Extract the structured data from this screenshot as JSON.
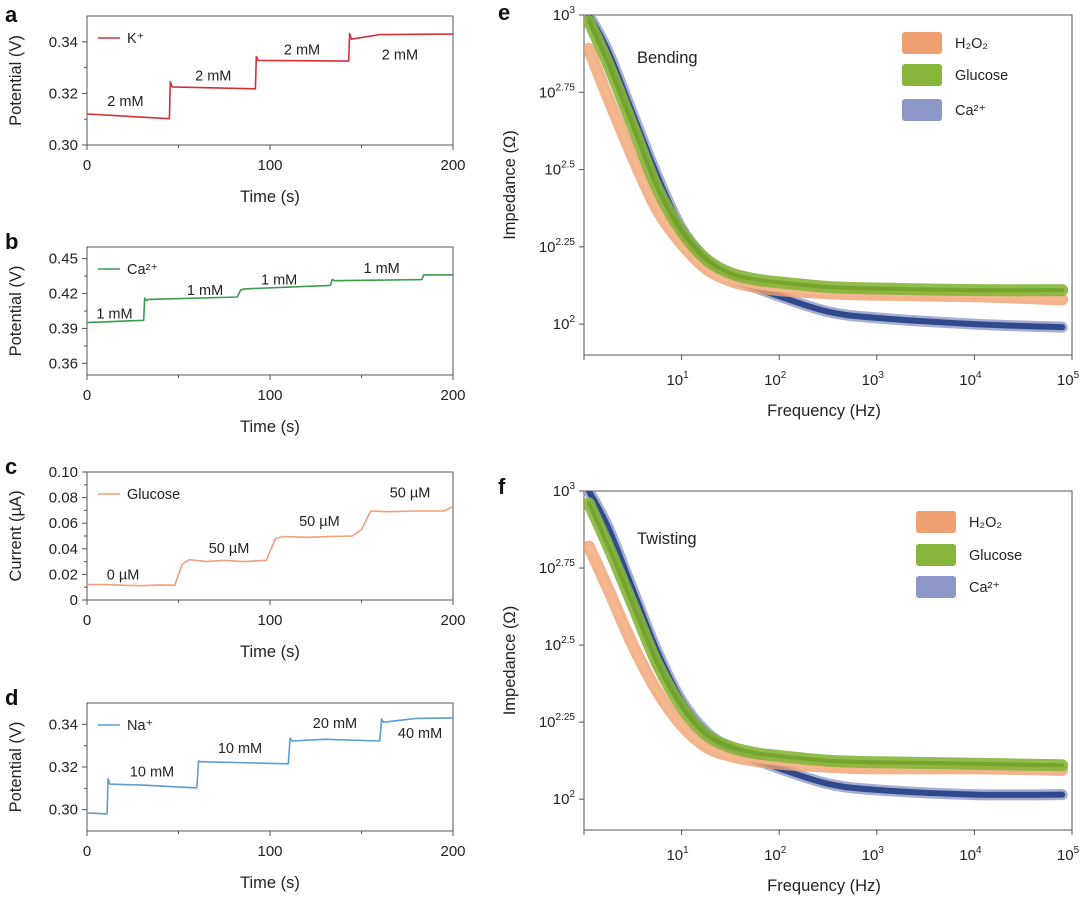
{
  "colors": {
    "K": "#d3313a",
    "Ca_b": "#3b9b4c",
    "Glucose_c": "#efa27a",
    "Na": "#5d9dd0",
    "H2O2": "#efa070",
    "Glucose": "#86b53a",
    "Glucose_core": "#6e9f25",
    "Ca": "#2f4a8c",
    "Ca_halo": "#8e98c8",
    "axis": "#555555"
  },
  "chart_data": [
    {
      "panel": "a",
      "type": "line",
      "xlabel": "Time (s)",
      "ylabel": "Potential (V)",
      "xlim": [
        0,
        200
      ],
      "ylim": [
        0.3,
        0.35
      ],
      "xticks": [
        0,
        100,
        200
      ],
      "xminor": [
        50,
        150
      ],
      "yticks": [
        0.3,
        0.32,
        0.34
      ],
      "yminor": [
        0.31,
        0.33
      ],
      "ytick_labels": [
        "0.30",
        "0.32",
        "0.34"
      ],
      "legend": {
        "position": "top-left",
        "label": "K⁺"
      },
      "color_key": "K",
      "series": [
        {
          "name": "K⁺",
          "x": [
            0,
            20,
            45,
            45.5,
            46.5,
            92,
            92.5,
            93.5,
            143,
            143.5,
            144.5,
            160,
            200
          ],
          "y": [
            0.312,
            0.3112,
            0.3102,
            0.3245,
            0.3225,
            0.3218,
            0.3343,
            0.3328,
            0.3325,
            0.3432,
            0.341,
            0.3428,
            0.343
          ]
        }
      ],
      "annotations": [
        {
          "text": "2 mM",
          "x": 21,
          "y": 0.317
        },
        {
          "text": "2 mM",
          "x": 69,
          "y": 0.327
        },
        {
          "text": "2 mM",
          "x": 117.5,
          "y": 0.337
        },
        {
          "text": "2 mM",
          "x": 171,
          "y": 0.335
        }
      ]
    },
    {
      "panel": "b",
      "type": "line",
      "xlabel": "Time (s)",
      "ylabel": "Potential (V)",
      "xlim": [
        0,
        200
      ],
      "ylim": [
        0.35,
        0.46
      ],
      "xticks": [
        0,
        100,
        200
      ],
      "xminor": [
        50,
        150
      ],
      "yticks": [
        0.36,
        0.39,
        0.42,
        0.45
      ],
      "yminor": [
        0.375,
        0.405,
        0.435
      ],
      "ytick_labels": [
        "0.36",
        "0.39",
        "0.42",
        "0.45"
      ],
      "legend": {
        "position": "top-left",
        "label": "Ca²⁺"
      },
      "color_key": "Ca_b",
      "series": [
        {
          "name": "Ca²⁺",
          "x": [
            0,
            31,
            31.5,
            32.5,
            33.5,
            82,
            84,
            86,
            133,
            134,
            135.5,
            183,
            184,
            200
          ],
          "y": [
            0.395,
            0.397,
            0.416,
            0.414,
            0.415,
            0.417,
            0.423,
            0.424,
            0.427,
            0.432,
            0.431,
            0.432,
            0.436,
            0.436
          ]
        }
      ],
      "annotations": [
        {
          "text": "1 mM",
          "x": 15,
          "y": 0.403
        },
        {
          "text": "1 mM",
          "x": 64.5,
          "y": 0.423
        },
        {
          "text": "1 mM",
          "x": 105,
          "y": 0.432
        },
        {
          "text": "1 mM",
          "x": 161,
          "y": 0.442
        }
      ]
    },
    {
      "panel": "c",
      "type": "line",
      "xlabel": "Time (s)",
      "ylabel": "Current (µA)",
      "xlim": [
        0,
        200
      ],
      "ylim": [
        0,
        0.1
      ],
      "xticks": [
        0,
        100,
        200
      ],
      "xminor": [
        50,
        150
      ],
      "yticks": [
        0,
        0.02,
        0.04,
        0.06,
        0.08,
        0.1
      ],
      "yminor": [
        0.01,
        0.03,
        0.05,
        0.07,
        0.09
      ],
      "ytick_labels": [
        "0",
        "0.02",
        "0.04",
        "0.06",
        "0.08",
        "0.10"
      ],
      "legend": {
        "position": "top-left",
        "label": "Glucose"
      },
      "color_key": "Glucose_c",
      "series": [
        {
          "name": "Glucose",
          "x": [
            0,
            10,
            20,
            30,
            40,
            48,
            52,
            56,
            65,
            75,
            85,
            98,
            103,
            107,
            120,
            135,
            145,
            150,
            155,
            165,
            180,
            195,
            200
          ],
          "y": [
            0.012,
            0.012,
            0.0115,
            0.0112,
            0.0118,
            0.0115,
            0.028,
            0.0315,
            0.03,
            0.031,
            0.03,
            0.031,
            0.048,
            0.0495,
            0.049,
            0.0497,
            0.05,
            0.055,
            0.0695,
            0.069,
            0.0695,
            0.0695,
            0.073
          ]
        }
      ],
      "annotations": [
        {
          "text": "0 µM",
          "x": 19.7,
          "y": 0.02
        },
        {
          "text": "50 µM",
          "x": 77.6,
          "y": 0.0406
        },
        {
          "text": "50 µM",
          "x": 127,
          "y": 0.0617
        },
        {
          "text": "50 µM",
          "x": 176.5,
          "y": 0.084
        }
      ]
    },
    {
      "panel": "d",
      "type": "line",
      "xlabel": "Time (s)",
      "ylabel": "Potential (V)",
      "xlim": [
        0,
        200
      ],
      "ylim": [
        0.29,
        0.35
      ],
      "xticks": [
        0,
        100,
        200
      ],
      "xminor": [
        50,
        150
      ],
      "yticks": [
        0.3,
        0.32,
        0.34
      ],
      "yminor": [
        0.31,
        0.33
      ],
      "ytick_labels": [
        "0.30",
        "0.32",
        "0.34"
      ],
      "legend": {
        "position": "top-left",
        "label": "Na⁺"
      },
      "color_key": "Na",
      "series": [
        {
          "name": "Na⁺",
          "x": [
            0,
            11,
            11.5,
            12.5,
            30,
            60,
            61,
            62,
            110,
            111,
            112,
            130,
            160,
            161,
            162,
            180,
            200
          ],
          "y": [
            0.2985,
            0.298,
            0.3145,
            0.312,
            0.3115,
            0.3102,
            0.3228,
            0.3225,
            0.3215,
            0.3335,
            0.3322,
            0.333,
            0.3322,
            0.3425,
            0.341,
            0.3428,
            0.343
          ]
        }
      ],
      "annotations": [
        {
          "text": "10 mM",
          "x": 35.5,
          "y": 0.318
        },
        {
          "text": "10 mM",
          "x": 83.6,
          "y": 0.329
        },
        {
          "text": "20 mM",
          "x": 135.5,
          "y": 0.3406
        },
        {
          "text": "40 mM",
          "x": 182,
          "y": 0.336
        }
      ]
    },
    {
      "panel": "e",
      "type": "line",
      "xscale": "log",
      "yscale": "log",
      "xlabel": "Frequency (Hz)",
      "ylabel": "Impedance (Ω)",
      "annotation": "Bending",
      "xlim_exponent": [
        0,
        5
      ],
      "ylim_exponent": [
        1.9,
        3
      ],
      "xtick_exponents": [
        "1",
        "2",
        "3",
        "4",
        "5"
      ],
      "ytick_exponents": [
        "2",
        "2.25",
        "2.5",
        "2.75",
        "3"
      ],
      "legend": {
        "position": "top-right",
        "labels": [
          "H₂O₂",
          "Glucose",
          "Ca²⁺"
        ]
      },
      "log10_frequency": [
        0.05,
        0.25,
        0.5,
        0.75,
        1,
        1.25,
        1.5,
        1.75,
        2,
        2.5,
        3,
        4,
        4.9
      ],
      "series": [
        {
          "name": "Ca²⁺",
          "log10_impedance": [
            3.0,
            2.88,
            2.68,
            2.48,
            2.31,
            2.21,
            2.155,
            2.12,
            2.09,
            2.04,
            2.02,
            2.0,
            1.99
          ]
        },
        {
          "name": "H₂O₂",
          "log10_impedance": [
            2.89,
            2.73,
            2.54,
            2.37,
            2.26,
            2.18,
            2.14,
            2.12,
            2.11,
            2.1,
            2.095,
            2.09,
            2.08
          ]
        },
        {
          "name": "Glucose",
          "log10_impedance": [
            2.98,
            2.84,
            2.64,
            2.44,
            2.3,
            2.21,
            2.165,
            2.145,
            2.135,
            2.12,
            2.115,
            2.11,
            2.11
          ]
        }
      ]
    },
    {
      "panel": "f",
      "type": "line",
      "xscale": "log",
      "yscale": "log",
      "xlabel": "Frequency (Hz)",
      "ylabel": "Impedance (Ω)",
      "annotation": "Twisting",
      "xlim_exponent": [
        0,
        5
      ],
      "ylim_exponent": [
        1.9,
        3
      ],
      "xtick_exponents": [
        "1",
        "2",
        "3",
        "4",
        "5"
      ],
      "ytick_exponents": [
        "2",
        "2.25",
        "2.5",
        "2.75",
        "3"
      ],
      "legend": {
        "position": "top-right",
        "labels": [
          "H₂O₂",
          "Glucose",
          "Ca²⁺"
        ]
      },
      "log10_frequency": [
        0.05,
        0.25,
        0.5,
        0.75,
        1,
        1.25,
        1.5,
        1.75,
        2,
        2.5,
        3,
        4,
        4.9
      ],
      "series": [
        {
          "name": "Ca²⁺",
          "log10_impedance": [
            3.0,
            2.88,
            2.68,
            2.48,
            2.32,
            2.22,
            2.165,
            2.13,
            2.1,
            2.05,
            2.03,
            2.015,
            2.015
          ]
        },
        {
          "name": "H₂O₂",
          "log10_impedance": [
            2.82,
            2.68,
            2.5,
            2.35,
            2.24,
            2.17,
            2.14,
            2.125,
            2.115,
            2.105,
            2.1,
            2.1,
            2.095
          ]
        },
        {
          "name": "Glucose",
          "log10_impedance": [
            2.96,
            2.82,
            2.63,
            2.44,
            2.3,
            2.21,
            2.17,
            2.15,
            2.14,
            2.125,
            2.12,
            2.115,
            2.11
          ]
        }
      ]
    }
  ]
}
